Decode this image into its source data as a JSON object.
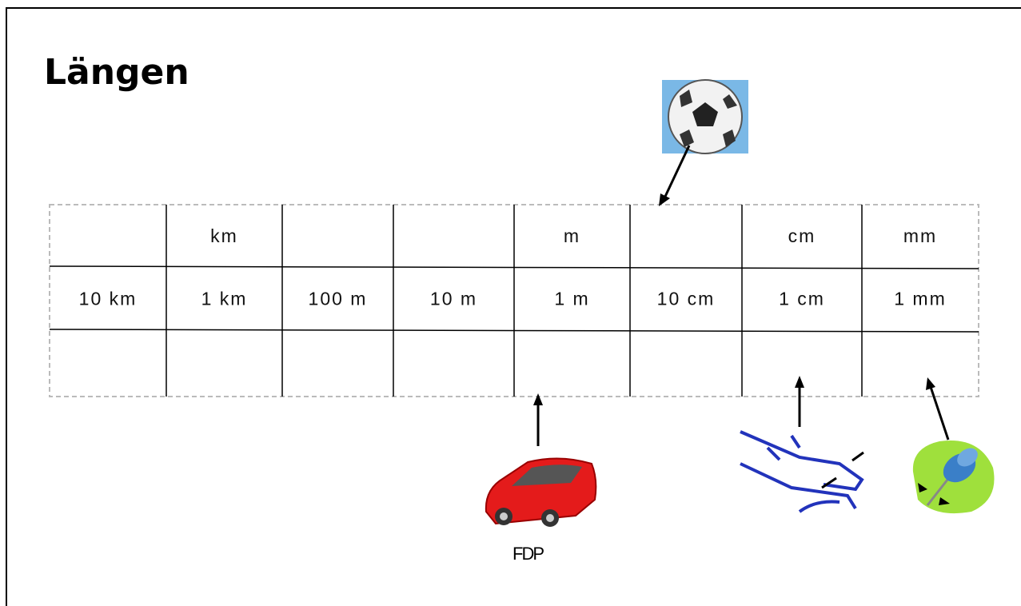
{
  "title": "Längen",
  "table": {
    "rows": [
      [
        null,
        "km",
        null,
        null,
        "m",
        null,
        "cm",
        "mm"
      ],
      [
        "10 km",
        "1 km",
        "100 m",
        "10 m",
        "1 m",
        "10 cm",
        "1 cm",
        "1 mm"
      ]
    ]
  },
  "car_caption": "FDP"
}
